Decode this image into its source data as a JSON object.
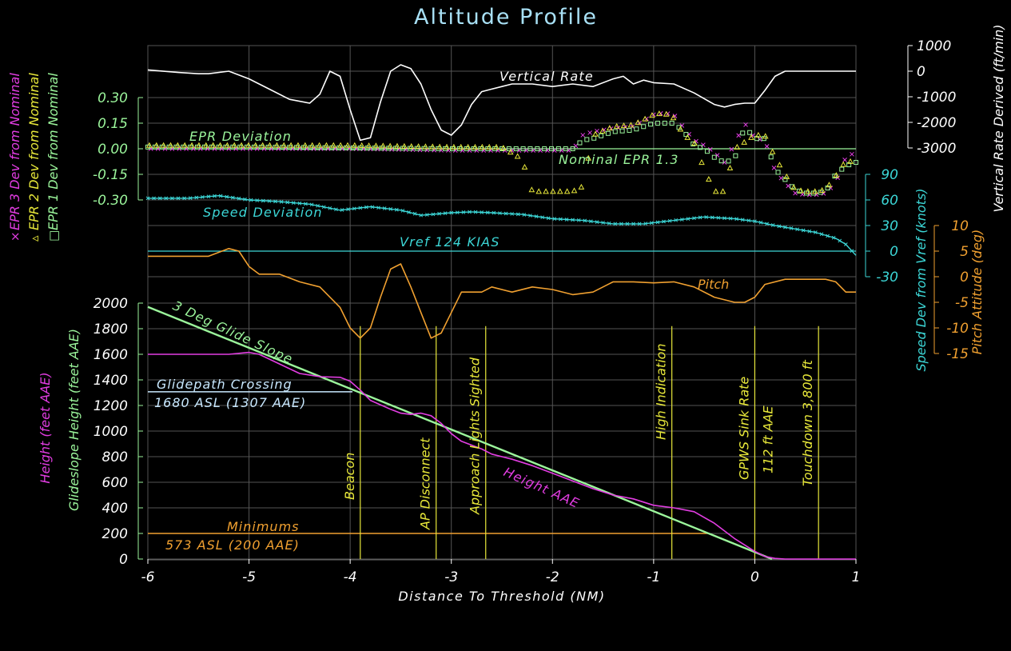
{
  "title": "Altitude Profile",
  "colors": {
    "background": "#000000",
    "white": "#ffffff",
    "title": "#a8e0f5",
    "green": "#9bf59b",
    "magenta": "#e23de2",
    "yellow": "#e8e83a",
    "cyan": "#3cd6d6",
    "orange": "#f0a030",
    "lightblue": "#c8e8ff",
    "grid": "#555555"
  },
  "chart_data": {
    "type": "line",
    "x_axis": {
      "label": "Distance To Threshold (NM)",
      "range": [
        -6,
        1
      ],
      "ticks": [
        "-6",
        "-5",
        "-4",
        "-3",
        "-2",
        "-1",
        "0",
        "1"
      ]
    },
    "height_axis": {
      "label": "Glideslope Height (feet AAE)",
      "label2": "Height (feet AAE)",
      "range": [
        0,
        2000
      ],
      "ticks": [
        "0",
        "200",
        "400",
        "600",
        "800",
        "1000",
        "1200",
        "1400",
        "1600",
        "1800",
        "2000"
      ]
    },
    "epr_axis": {
      "range": [
        -0.3,
        0.3
      ],
      "ticks": [
        "0.30",
        "0.15",
        "0.00",
        "-0.15",
        "-0.30"
      ],
      "legend": [
        "EPR 3 Dev from Nominal",
        "EPR 2 Dev from Nominal",
        "EPR 1 Dev from Nominal"
      ],
      "legend_markers": [
        "×",
        "▵",
        "□"
      ]
    },
    "vrate_axis": {
      "label": "Vertical Rate Derived (ft/min)",
      "range": [
        -3000,
        1000
      ],
      "ticks": [
        "1000",
        "0",
        "-1000",
        "-2000",
        "-3000"
      ]
    },
    "speed_axis": {
      "label": "Speed Dev from Vref (knots)",
      "range": [
        -30,
        90
      ],
      "ticks": [
        "90",
        "60",
        "30",
        "0",
        "-30"
      ]
    },
    "pitch_axis": {
      "label": "Pitch Attitude (deg)",
      "range": [
        -15,
        10
      ],
      "ticks": [
        "10",
        "5",
        "0",
        "-5",
        "-10",
        "-15"
      ]
    },
    "annotations": {
      "vertical_rate": "Vertical Rate",
      "epr_deviation": "EPR Deviation",
      "nominal_epr": "Nominal EPR 1.3",
      "speed_deviation": "Speed Deviation",
      "vref": "Vref 124 KIAS",
      "pitch": "Pitch",
      "glide_slope": "3 Deg Glide Slope",
      "glidepath_crossing_1": "Glidepath Crossing",
      "glidepath_crossing_2": "1680 ASL (1307 AAE)",
      "minimums_1": "Minimums",
      "minimums_2": "573 ASL (200 AAE)",
      "height_aae": "Height AAE"
    },
    "events": [
      {
        "x": -3.9,
        "label": "Beacon"
      },
      {
        "x": -3.15,
        "label": "AP Disconnect"
      },
      {
        "x": -2.66,
        "label": "Approach Lights Sighted"
      },
      {
        "x": -0.82,
        "label": "High Indication"
      },
      {
        "x": 0.0,
        "label": "GPWS Sink Rate",
        "label2": "112 ft AAE"
      },
      {
        "x": 0.63,
        "label": "Touchdown 3,800 ft"
      }
    ],
    "glide_slope": {
      "x": [
        -6,
        0.17
      ],
      "y": [
        1970,
        0
      ]
    },
    "glidepath_crossing_height": 1307,
    "minimums_height": 200,
    "height_aae": {
      "x": [
        -6,
        -5.5,
        -5.2,
        -5.0,
        -4.9,
        -4.5,
        -4.3,
        -4.1,
        -4.0,
        -3.9,
        -3.8,
        -3.6,
        -3.5,
        -3.4,
        -3.3,
        -3.2,
        -3.1,
        -3.0,
        -2.9,
        -2.7,
        -2.6,
        -2.4,
        -2.2,
        -2.0,
        -1.8,
        -1.6,
        -1.4,
        -1.2,
        -1.0,
        -0.8,
        -0.6,
        -0.4,
        -0.2,
        0.0,
        0.1,
        0.2,
        0.3,
        0.5,
        1.0
      ],
      "y": [
        1600,
        1600,
        1600,
        1615,
        1600,
        1450,
        1425,
        1420,
        1390,
        1320,
        1240,
        1170,
        1140,
        1130,
        1140,
        1120,
        1060,
        980,
        920,
        860,
        820,
        780,
        730,
        670,
        610,
        550,
        500,
        470,
        420,
        400,
        370,
        280,
        160,
        60,
        20,
        5,
        0,
        0,
        0
      ]
    },
    "vertical_rate": {
      "x": [
        -6,
        -5.7,
        -5.5,
        -5.4,
        -5.2,
        -5.0,
        -4.8,
        -4.6,
        -4.4,
        -4.3,
        -4.2,
        -4.1,
        -4.0,
        -3.9,
        -3.8,
        -3.7,
        -3.6,
        -3.5,
        -3.4,
        -3.3,
        -3.2,
        -3.1,
        -3.0,
        -2.9,
        -2.8,
        -2.7,
        -2.6,
        -2.5,
        -2.4,
        -2.2,
        -2.0,
        -1.8,
        -1.6,
        -1.4,
        -1.3,
        -1.2,
        -1.1,
        -1.0,
        -0.8,
        -0.6,
        -0.4,
        -0.3,
        -0.2,
        -0.1,
        0.0,
        0.1,
        0.2,
        0.3,
        0.5,
        0.7,
        1.0
      ],
      "y": [
        50,
        -50,
        -100,
        -100,
        0,
        -300,
        -700,
        -1100,
        -1250,
        -900,
        0,
        -200,
        -1500,
        -2700,
        -2600,
        -1200,
        0,
        250,
        100,
        -500,
        -1500,
        -2300,
        -2500,
        -2100,
        -1300,
        -800,
        -700,
        -600,
        -500,
        -500,
        -600,
        -500,
        -600,
        -300,
        -200,
        -500,
        -350,
        -450,
        -500,
        -850,
        -1300,
        -1400,
        -1300,
        -1250,
        -1250,
        -750,
        -200,
        0,
        0,
        0,
        0
      ]
    },
    "speed_deviation": {
      "x": [
        -6,
        -5.6,
        -5.3,
        -5.0,
        -4.7,
        -4.4,
        -4.1,
        -3.8,
        -3.5,
        -3.3,
        -3.0,
        -2.8,
        -2.6,
        -2.3,
        -2.0,
        -1.7,
        -1.4,
        -1.1,
        -0.8,
        -0.5,
        -0.2,
        0.0,
        0.2,
        0.4,
        0.6,
        0.8,
        0.9,
        1.0
      ],
      "y": [
        62,
        62,
        65,
        60,
        58,
        55,
        48,
        52,
        48,
        42,
        45,
        46,
        45,
        43,
        38,
        36,
        32,
        32,
        36,
        40,
        38,
        35,
        30,
        26,
        22,
        15,
        8,
        -5
      ]
    },
    "pitch": {
      "x": [
        -6,
        -5.7,
        -5.4,
        -5.2,
        -5.1,
        -5.0,
        -4.9,
        -4.7,
        -4.5,
        -4.3,
        -4.1,
        -4.0,
        -3.9,
        -3.8,
        -3.7,
        -3.6,
        -3.5,
        -3.4,
        -3.3,
        -3.2,
        -3.1,
        -3.0,
        -2.9,
        -2.8,
        -2.7,
        -2.6,
        -2.4,
        -2.2,
        -2.0,
        -1.8,
        -1.6,
        -1.4,
        -1.2,
        -1.0,
        -0.8,
        -0.6,
        -0.4,
        -0.2,
        -0.1,
        0.0,
        0.1,
        0.3,
        0.5,
        0.7,
        0.8,
        0.9,
        1.0
      ],
      "y": [
        4,
        4,
        4,
        5.5,
        5,
        2,
        0.5,
        0.5,
        -1,
        -2,
        -6,
        -10,
        -12,
        -10,
        -4,
        1.5,
        2.5,
        -2,
        -7,
        -12,
        -11,
        -7,
        -3,
        -3,
        -3,
        -2,
        -3,
        -2,
        -2.5,
        -3.5,
        -3,
        -1,
        -1,
        -1.2,
        -1,
        -2,
        -4,
        -5,
        -5,
        -4,
        -1.5,
        -0.5,
        -0.5,
        -0.5,
        -1,
        -3,
        -3
      ]
    },
    "epr1": {
      "x": [
        -6,
        -5,
        -4,
        -3,
        -2,
        -1.8,
        -1.7,
        -1.6,
        -1.4,
        -1.2,
        -1.0,
        -0.9,
        -0.8,
        -0.7,
        -0.6,
        -0.5,
        -0.4,
        -0.3,
        -0.2,
        -0.1,
        0.0,
        0.1,
        0.2,
        0.3,
        0.4,
        0.5,
        0.6,
        0.7,
        0.8,
        0.9,
        1.0
      ],
      "y": [
        0.01,
        0.01,
        0.005,
        0.0,
        0.0,
        0.0,
        0.05,
        0.06,
        0.1,
        0.11,
        0.15,
        0.15,
        0.15,
        0.1,
        0.02,
        0.0,
        -0.05,
        -0.08,
        -0.06,
        0.13,
        0.06,
        0.06,
        -0.12,
        -0.18,
        -0.24,
        -0.26,
        -0.26,
        -0.25,
        -0.15,
        -0.1,
        -0.08
      ]
    },
    "epr2": {
      "x": [
        -6,
        -5,
        -4,
        -3,
        -2.5,
        -2.3,
        -2.2,
        -2.0,
        -1.8,
        -1.7,
        -1.6,
        -1.4,
        -1.2,
        -1.0,
        -0.9,
        -0.8,
        -0.7,
        -0.6,
        -0.5,
        -0.4,
        -0.3,
        -0.2,
        -0.1,
        0.0,
        0.1,
        0.2,
        0.3,
        0.4,
        0.5,
        0.6,
        0.7,
        0.8,
        0.9,
        1.0
      ],
      "y": [
        0.02,
        0.02,
        0.02,
        0.01,
        0.01,
        -0.06,
        -0.25,
        -0.25,
        -0.25,
        -0.22,
        0.08,
        0.13,
        0.14,
        0.2,
        0.21,
        0.18,
        0.08,
        0.04,
        -0.12,
        -0.25,
        -0.25,
        0.0,
        0.04,
        0.08,
        0.08,
        -0.05,
        -0.15,
        -0.24,
        -0.25,
        -0.25,
        -0.24,
        -0.16,
        -0.07,
        -0.08
      ]
    },
    "epr3": {
      "x": [
        -6,
        -5,
        -4,
        -3,
        -2,
        -1.8,
        -1.7,
        -1.6,
        -1.4,
        -1.2,
        -1.0,
        -0.9,
        -0.8,
        -0.7,
        -0.6,
        -0.5,
        -0.4,
        -0.3,
        -0.2,
        -0.1,
        0.0,
        0.1,
        0.2,
        0.3,
        0.4,
        0.5,
        0.6,
        0.7,
        0.8,
        0.9,
        1.0
      ],
      "y": [
        0.0,
        0.0,
        0.0,
        -0.01,
        -0.01,
        -0.01,
        0.08,
        0.1,
        0.12,
        0.13,
        0.2,
        0.21,
        0.2,
        0.12,
        0.05,
        0.02,
        -0.02,
        -0.08,
        0.03,
        0.15,
        0.06,
        0.05,
        -0.13,
        -0.2,
        -0.26,
        -0.27,
        -0.27,
        -0.26,
        -0.2,
        -0.05,
        -0.02
      ]
    }
  }
}
